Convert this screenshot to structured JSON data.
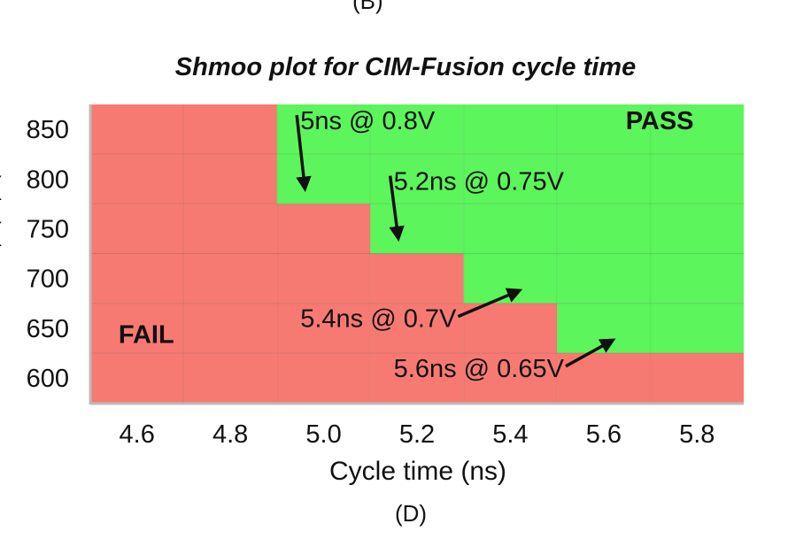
{
  "figure": {
    "top_caption": "(B)",
    "bottom_caption": "(D)",
    "y_title_fragments": [
      "(",
      "("
    ]
  },
  "chart_data": {
    "type": "heatmap",
    "title": "Shmoo plot for CIM-Fusion cycle time",
    "xlabel": "Cycle time (ns)",
    "ylabel": "",
    "x_ticks": [
      "4.6",
      "4.8",
      "5.0",
      "5.2",
      "5.4",
      "5.6",
      "5.8"
    ],
    "y_ticks": [
      "600",
      "650",
      "700",
      "750",
      "800",
      "850"
    ],
    "xlim": [
      4.5,
      5.9
    ],
    "ylim": [
      575,
      875
    ],
    "x_cells": [
      4.6,
      4.8,
      5.0,
      5.2,
      5.4,
      5.6,
      5.8
    ],
    "y_rows": [
      600,
      650,
      700,
      750,
      800,
      850
    ],
    "pass_threshold": [
      {
        "y": 600,
        "x_min": null
      },
      {
        "y": 650,
        "x_min": 5.5
      },
      {
        "y": 700,
        "x_min": 5.3
      },
      {
        "y": 750,
        "x_min": 5.1
      },
      {
        "y": 800,
        "x_min": 4.9
      },
      {
        "y": 850,
        "x_min": 4.9
      }
    ],
    "regions": [
      {
        "label": "PASS",
        "x": 5.72,
        "y": 850,
        "color": "#5cf55c"
      },
      {
        "label": "FAIL",
        "x": 4.62,
        "y": 635,
        "color": "#f77a72"
      }
    ],
    "annotations": [
      {
        "text": "5ns @ 0.8V",
        "x": 4.95,
        "y": 850,
        "arrow_to": [
          4.96,
          790
        ]
      },
      {
        "text": "5.2ns @ 0.75V",
        "x": 5.15,
        "y": 789,
        "arrow_to": [
          5.16,
          740
        ]
      },
      {
        "text": "5.4ns @ 0.7V",
        "x": 4.95,
        "y": 651,
        "arrow_to": [
          5.42,
          688
        ]
      },
      {
        "text": "5.6ns @ 0.65V",
        "x": 5.15,
        "y": 601,
        "arrow_to": [
          5.62,
          638
        ]
      }
    ]
  }
}
